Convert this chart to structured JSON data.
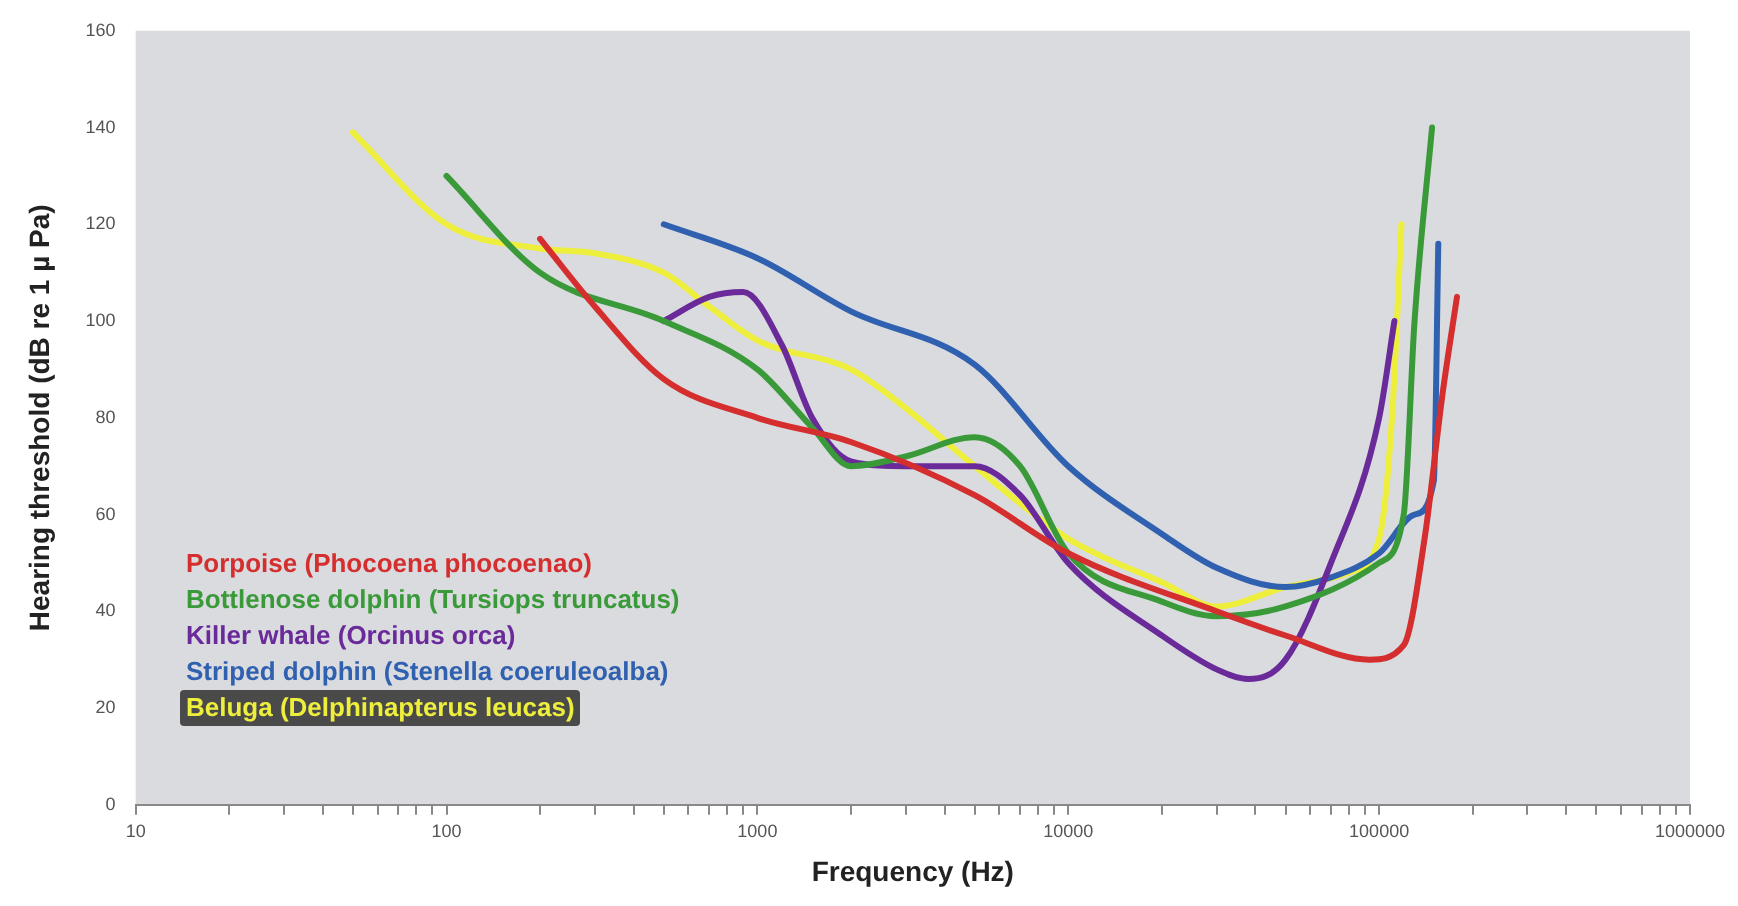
{
  "chart_data": {
    "type": "line",
    "xlabel": "Frequency (Hz)",
    "ylabel": "Hearing threshold (dB re 1 µ Pa)",
    "log": "x",
    "legend": "bottom left",
    "marker": "none",
    "line_style": "solid",
    "xlim": [
      10,
      1000000
    ],
    "ylim": [
      0,
      160
    ],
    "yticks": [
      0,
      20,
      40,
      60,
      80,
      100,
      120,
      140,
      160
    ],
    "xticks": [
      10,
      {
        "value": 20,
        "label": null
      },
      {
        "value": 30,
        "label": null
      },
      {
        "value": 40,
        "label": null
      },
      {
        "value": 50,
        "label": null
      },
      {
        "value": 60,
        "label": null
      },
      {
        "value": 70,
        "label": null
      },
      {
        "value": 80,
        "label": null
      },
      {
        "value": 90,
        "label": null
      },
      100,
      {
        "value": 200,
        "label": null
      },
      {
        "value": 300,
        "label": null
      },
      {
        "value": 400,
        "label": null
      },
      {
        "value": 500,
        "label": null
      },
      {
        "value": 600,
        "label": null
      },
      {
        "value": 700,
        "label": null
      },
      {
        "value": 800,
        "label": null
      },
      {
        "value": 900,
        "label": null
      },
      1000,
      {
        "value": 2000,
        "label": null
      },
      {
        "value": 3000,
        "label": null
      },
      {
        "value": 4000,
        "label": null
      },
      {
        "value": 5000,
        "label": null
      },
      {
        "value": 6000,
        "label": null
      },
      {
        "value": 7000,
        "label": null
      },
      {
        "value": 8000,
        "label": null
      },
      {
        "value": 9000,
        "label": null
      },
      10000,
      {
        "value": 20000,
        "label": null
      },
      {
        "value": 30000,
        "label": null
      },
      {
        "value": 40000,
        "label": null
      },
      {
        "value": 50000,
        "label": null
      },
      {
        "value": 60000,
        "label": null
      },
      {
        "value": 70000,
        "label": null
      },
      {
        "value": 80000,
        "label": null
      },
      {
        "value": 90000,
        "label": null
      },
      100000,
      {
        "value": 200000,
        "label": null
      },
      {
        "value": 300000,
        "label": null
      },
      {
        "value": 400000,
        "label": null
      },
      {
        "value": 500000,
        "label": null
      },
      {
        "value": 600000,
        "label": null
      },
      {
        "value": 700000,
        "label": null
      },
      {
        "value": 800000,
        "label": null
      },
      {
        "value": 900000,
        "label": null
      },
      1000000
    ],
    "series": [
      {
        "name": "Porpoise (Phocoena phocoenao)",
        "color": "#d42e2e",
        "x": [
          200,
          300,
          500,
          1000,
          2000,
          5000,
          10000,
          30000,
          50000,
          93000,
          120000,
          140000,
          160000,
          178000
        ],
        "values": [
          117,
          103,
          88,
          80,
          75,
          64,
          52,
          40,
          35,
          30,
          33,
          55,
          85,
          105
        ]
      },
      {
        "name": "Bottlenose dolphin (Tursiops truncatus)",
        "color": "#3a9a3a",
        "x": [
          100,
          200,
          500,
          1000,
          1500,
          2000,
          3000,
          5000,
          7000,
          10000,
          20000,
          30000,
          50000,
          100000,
          120000,
          130000,
          148000
        ],
        "values": [
          130,
          110,
          100,
          90,
          78,
          70,
          72,
          76,
          70,
          52,
          42,
          39,
          41,
          50,
          60,
          100,
          140
        ]
      },
      {
        "name": "Killer whale (Orcinus orca)",
        "color": "#6a2a9a",
        "x": [
          500,
          700,
          900,
          1200,
          1500,
          2000,
          3000,
          5000,
          7000,
          10000,
          20000,
          30000,
          38000,
          50000,
          70000,
          100000,
          112000
        ],
        "values": [
          100,
          105,
          106,
          95,
          80,
          71,
          70,
          70,
          64,
          50,
          35,
          28,
          26,
          30,
          50,
          80,
          100
        ]
      },
      {
        "name": "Striped dolphin (Stenella coeruleoalba)",
        "color": "#3060b0",
        "x": [
          500,
          1000,
          2000,
          5000,
          10000,
          20000,
          30000,
          50000,
          70000,
          100000,
          130000,
          150000,
          155000
        ],
        "values": [
          120,
          113,
          102,
          91,
          70,
          56,
          49,
          45,
          47,
          52,
          60,
          67,
          116
        ]
      },
      {
        "name": "Beluga (Delphinapterus leucas)",
        "color": "#eeee3c",
        "x": [
          50,
          100,
          200,
          300,
          500,
          700,
          1000,
          2000,
          3000,
          5000,
          10000,
          20000,
          30000,
          50000,
          80000,
          100000,
          110000,
          118000
        ],
        "values": [
          139,
          120,
          115,
          114,
          110,
          103,
          96,
          90,
          82,
          70,
          55,
          46,
          41,
          45,
          48,
          55,
          80,
          120
        ]
      }
    ]
  }
}
